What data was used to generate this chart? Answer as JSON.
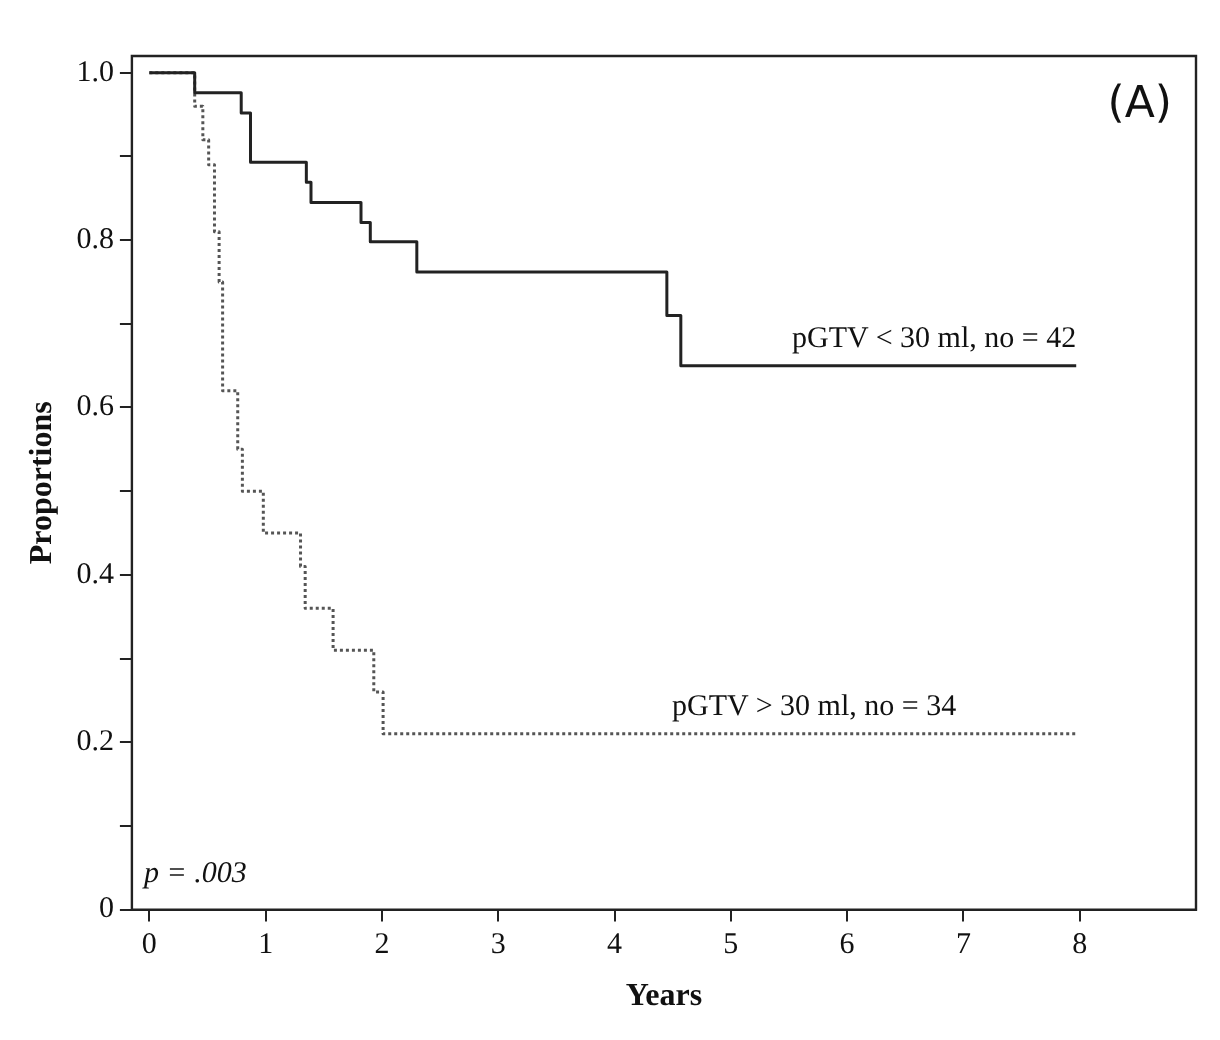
{
  "chart_data": {
    "type": "step",
    "xlabel": "Years",
    "ylabel": "Proportions",
    "xlim": [
      -0.15,
      9
    ],
    "xticks": [
      0,
      1,
      2,
      3,
      4,
      5,
      6,
      7,
      8
    ],
    "ylim": [
      0,
      1.02
    ],
    "yticks": [
      0,
      {
        "value": 0.1,
        "label": null
      },
      0.2,
      {
        "value": 0.3,
        "label": null
      },
      0.4,
      {
        "value": 0.5,
        "label": null
      },
      0.6,
      {
        "value": 0.7,
        "label": null
      },
      0.8,
      {
        "value": 0.9,
        "label": null
      },
      {
        "value": 1,
        "label": "1.0"
      }
    ],
    "grid": false,
    "legend": false,
    "marker": "none",
    "series": [
      {
        "name": "pGTV < 30 ml, no = 42",
        "color": "#222222",
        "line_style": "solid",
        "x": [
          0,
          0.39,
          0.79,
          0.87,
          1.35,
          1.39,
          1.82,
          1.9,
          2.3,
          4.45,
          4.57,
          7.97
        ],
        "values": [
          1,
          0.976,
          0.952,
          0.893,
          0.869,
          0.845,
          0.821,
          0.798,
          0.762,
          0.71,
          0.65,
          0.65
        ]
      },
      {
        "name": "pGTV > 30 ml, no = 34",
        "color": "#555555",
        "line_style": "dotted",
        "x": [
          0,
          0.39,
          0.46,
          0.51,
          0.56,
          0.6,
          0.63,
          0.76,
          0.8,
          0.98,
          1.3,
          1.34,
          1.58,
          1.93,
          2.01,
          7.97
        ],
        "values": [
          1,
          0.96,
          0.92,
          0.89,
          0.81,
          0.75,
          0.62,
          0.55,
          0.5,
          0.45,
          0.41,
          0.36,
          0.31,
          0.26,
          0.21,
          0.21
        ]
      }
    ],
    "annotations": [
      "(A)",
      "p = .003"
    ]
  }
}
